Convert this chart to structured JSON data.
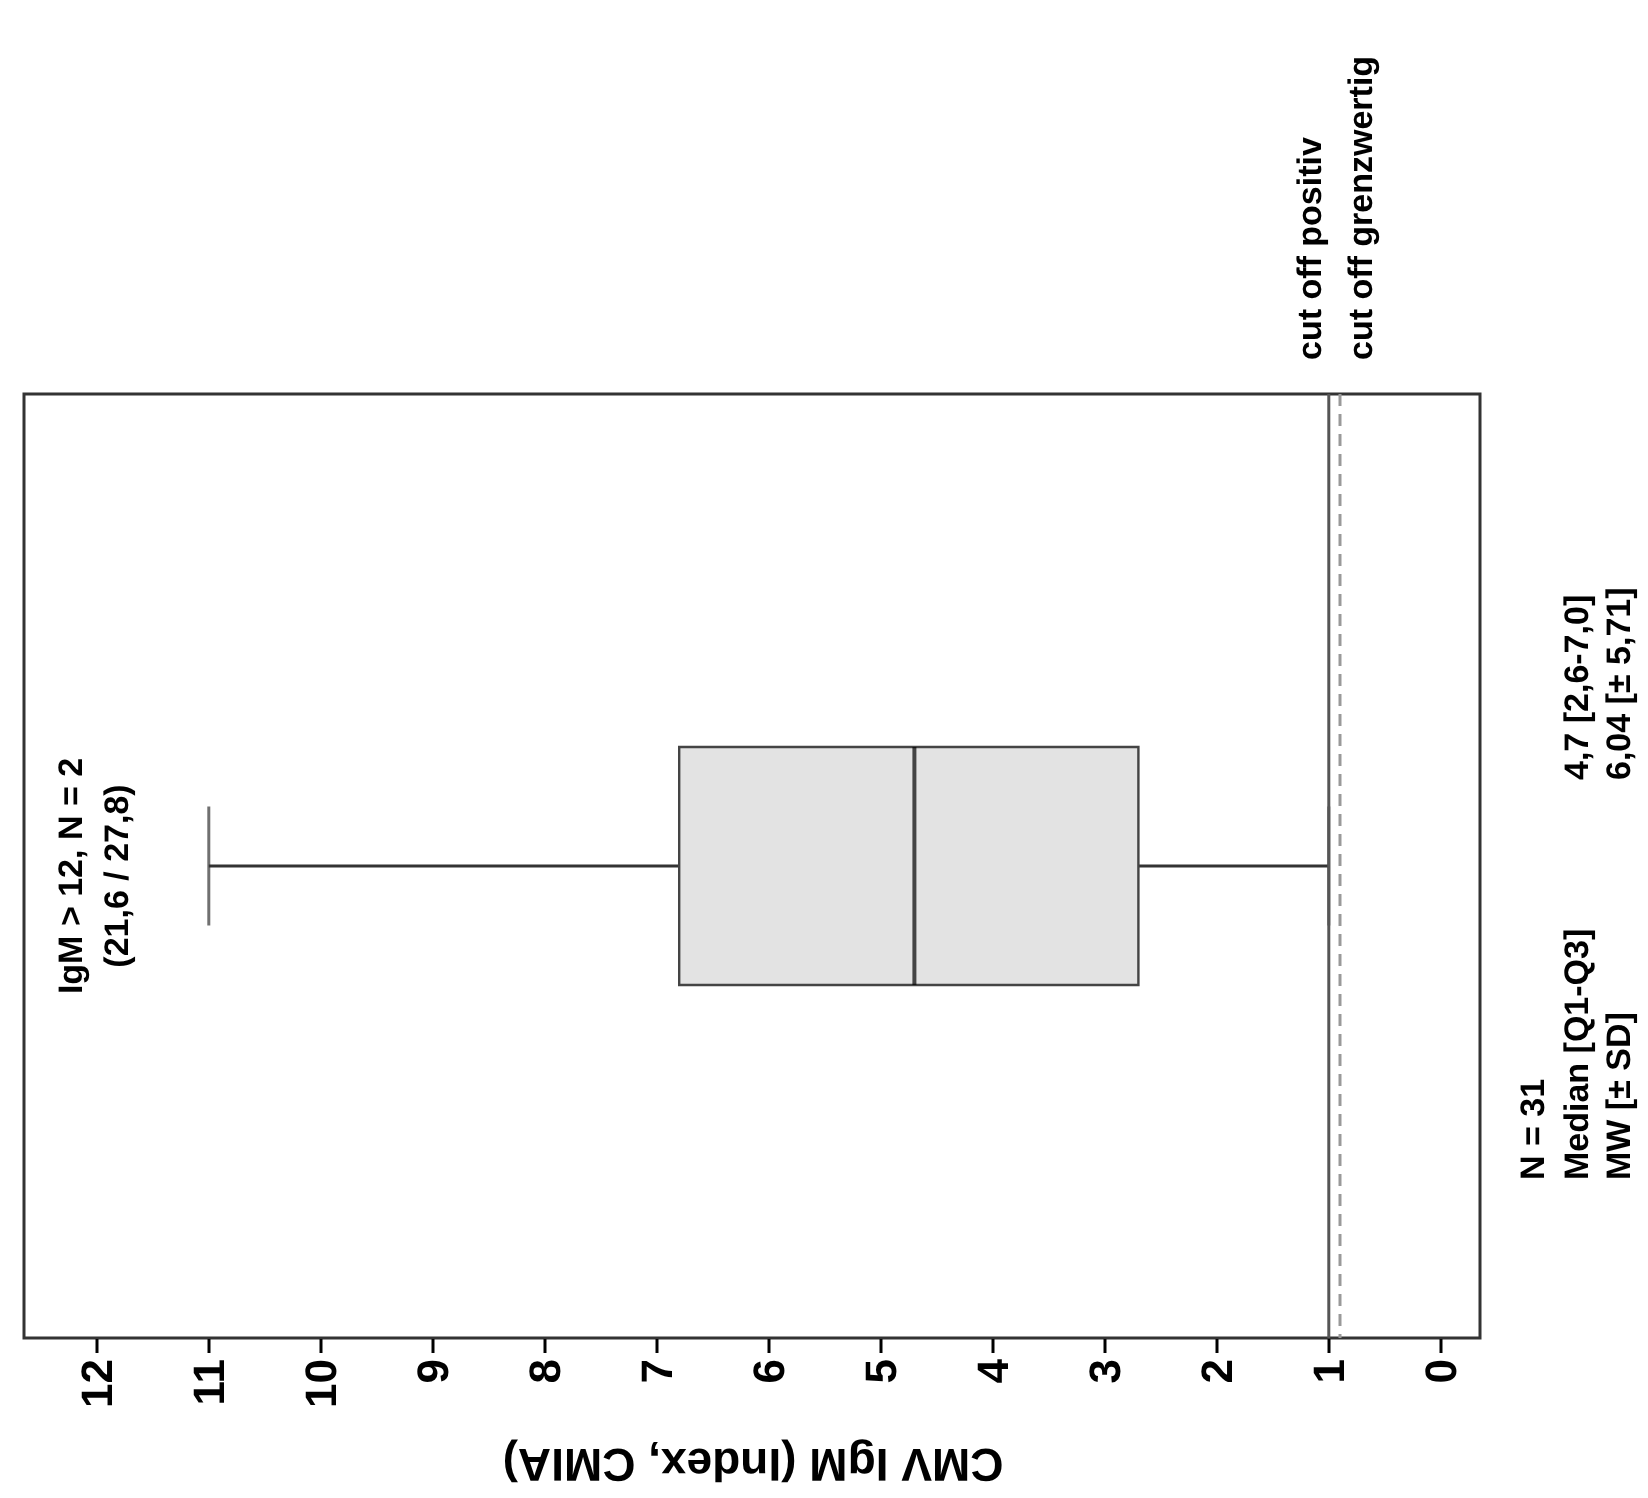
{
  "chart_data": {
    "type": "box",
    "orientation": "horizontal",
    "categories": [
      null
    ],
    "color": "#e3e3e3",
    "boxes": [
      {
        "low": 1.0,
        "q1": 2.7,
        "median": 4.7,
        "q3": 6.8,
        "high": 11.0
      }
    ],
    "xlabel": "CMV IgM (Index, CMIA)",
    "xlim": [
      12.65,
      -0.35
    ],
    "xticks": [
      12,
      11,
      10,
      9,
      8,
      7,
      6,
      5,
      4,
      3,
      2,
      1,
      0
    ],
    "grid": false,
    "ref_lines": [
      {
        "axis": "x",
        "value": 1.0,
        "label": "cut off positiv",
        "color": "#555555",
        "line_style": "solid"
      },
      {
        "axis": "x",
        "value": 0.9,
        "label": "cut off grenzwertig",
        "color": "#999999",
        "line_style": "dashed"
      }
    ],
    "annotations": [
      "IgM > 12, N = 2",
      "(21,6 / 27,8)",
      "N = 31",
      "Median [Q1-Q3]",
      "MW [± SD]",
      "4,7 [2,6-7,0]",
      "6,04 [± 5,71]"
    ]
  }
}
